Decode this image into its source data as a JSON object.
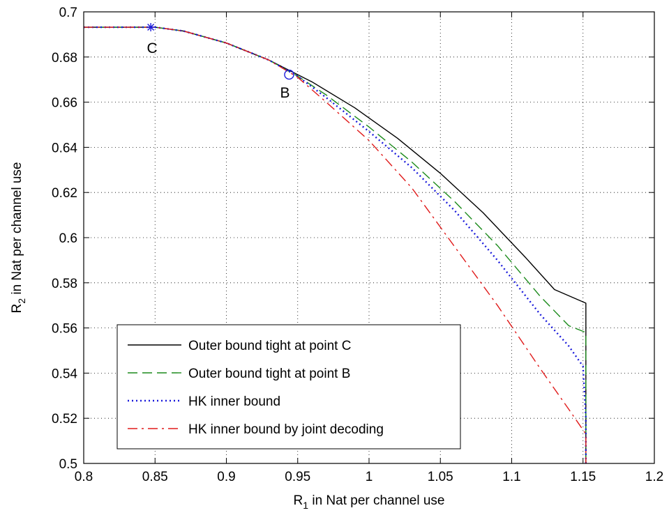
{
  "chart_data": {
    "type": "line",
    "title": "",
    "xlabel": {
      "main": "R",
      "sub": "1",
      "rest": " in Nat per channel use"
    },
    "ylabel": {
      "main": "R",
      "sub": "2",
      "rest": " in Nat per channel use"
    },
    "xlim": [
      0.8,
      1.2
    ],
    "ylim": [
      0.5,
      0.7
    ],
    "xticks": [
      0.8,
      0.85,
      0.9,
      0.95,
      1.0,
      1.05,
      1.1,
      1.15,
      1.2
    ],
    "xtick_labels": [
      "0.8",
      "0.85",
      "0.9",
      "0.95",
      "1",
      "1.05",
      "1.1",
      "1.15",
      "1.2"
    ],
    "yticks": [
      0.5,
      0.52,
      0.54,
      0.56,
      0.58,
      0.6,
      0.62,
      0.64,
      0.66,
      0.68,
      0.7
    ],
    "ytick_labels": [
      "0.5",
      "0.52",
      "0.54",
      "0.56",
      "0.58",
      "0.6",
      "0.62",
      "0.64",
      "0.66",
      "0.68",
      "0.7"
    ],
    "grid": true,
    "legend_position": "lower-left",
    "series": [
      {
        "name": "Outer bound tight at point C",
        "color": "#000000",
        "style": "solid",
        "x": [
          0.8,
          0.85,
          0.87,
          0.9,
          0.93,
          0.96,
          0.99,
          1.02,
          1.05,
          1.08,
          1.11,
          1.13,
          1.152,
          1.152,
          1.152
        ],
        "y": [
          0.6932,
          0.6932,
          0.6915,
          0.6862,
          0.6786,
          0.669,
          0.6575,
          0.644,
          0.6285,
          0.611,
          0.591,
          0.577,
          0.571,
          0.55,
          0.5
        ]
      },
      {
        "name": "Outer bound tight at point B",
        "color": "#1a8a1a",
        "style": "dashed",
        "x": [
          0.8,
          0.85,
          0.87,
          0.9,
          0.93,
          0.95,
          0.97,
          1.0,
          1.03,
          1.06,
          1.09,
          1.12,
          1.14,
          1.152,
          1.152,
          1.152
        ],
        "y": [
          0.6932,
          0.6932,
          0.6915,
          0.6862,
          0.6786,
          0.6715,
          0.6632,
          0.649,
          0.6335,
          0.616,
          0.5965,
          0.574,
          0.561,
          0.558,
          0.54,
          0.5
        ]
      },
      {
        "name": "HK inner bound",
        "color": "#1a1adb",
        "style": "dotted",
        "x": [
          0.8,
          0.85,
          0.87,
          0.9,
          0.93,
          0.95,
          0.97,
          1.0,
          1.03,
          1.06,
          1.09,
          1.12,
          1.14,
          1.15,
          1.152,
          1.152
        ],
        "y": [
          0.6932,
          0.6932,
          0.6915,
          0.6862,
          0.6786,
          0.6715,
          0.662,
          0.647,
          0.631,
          0.612,
          0.59,
          0.566,
          0.552,
          0.543,
          0.52,
          0.5
        ]
      },
      {
        "name": "HK inner bound by joint decoding",
        "color": "#e01a1a",
        "style": "dashdot",
        "x": [
          0.8,
          0.85,
          0.87,
          0.9,
          0.93,
          0.95,
          0.97,
          1.0,
          1.03,
          1.06,
          1.09,
          1.12,
          1.14,
          1.152,
          1.152
        ],
        "y": [
          0.6932,
          0.6932,
          0.6915,
          0.6862,
          0.6786,
          0.671,
          0.66,
          0.643,
          0.622,
          0.596,
          0.57,
          0.542,
          0.524,
          0.513,
          0.5
        ]
      }
    ],
    "points": [
      {
        "label": "C",
        "marker": "star",
        "color": "#1a1adb",
        "x": 0.847,
        "y": 0.6932
      },
      {
        "label": "B",
        "marker": "circle",
        "color": "#1a1adb",
        "x": 0.944,
        "y": 0.6722
      }
    ]
  }
}
